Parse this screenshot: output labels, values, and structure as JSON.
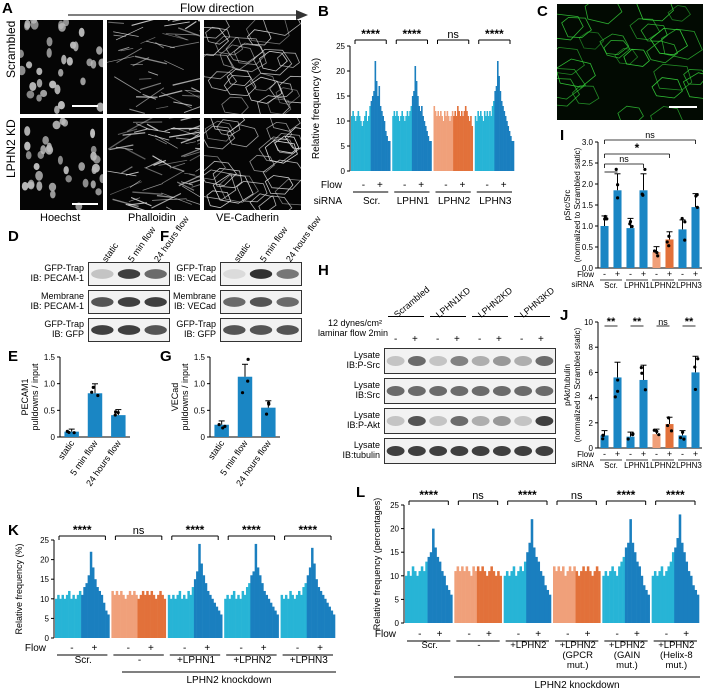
{
  "panels": {
    "A": {
      "letter": "A",
      "flow_direction": "Flow direction",
      "rows": [
        "Scrambled",
        "LPHN2 KD"
      ],
      "cols": [
        "Hoechst",
        "Phalloidin",
        "VE-Cadherin"
      ]
    },
    "B": {
      "letter": "B",
      "ylabel": "Relative frequency (%)",
      "sig": [
        "****",
        "****",
        "ns",
        "****"
      ],
      "flow": "Flow",
      "siRNA": "siRNA",
      "groups": [
        "Scr.",
        "LPHN1",
        "LPHN2",
        "LPHN3"
      ],
      "minus": "-",
      "plus": "+"
    },
    "C": {
      "letter": "C"
    },
    "D": {
      "letter": "D",
      "lanes": [
        "static",
        "5 min flow",
        "24 hours flow"
      ],
      "rows": [
        "GFP-Trap\nIB: PECAM-1",
        "Membrane\nIB: PECAM-1",
        "GFP-Trap\nIB: GFP"
      ]
    },
    "E": {
      "letter": "E",
      "ylabel": "PECAM1\npulldowns / input",
      "cats": [
        "static",
        "5 min flow",
        "24 hours flow"
      ]
    },
    "F": {
      "letter": "F",
      "lanes": [
        "static",
        "5 min flow",
        "24 hours flow"
      ],
      "rows": [
        "GFP-Trap\nIB: VECad",
        "Membrane\nIB: VECad",
        "GFP-Trap\nIB: GFP"
      ]
    },
    "G": {
      "letter": "G",
      "ylabel": "VECad\npulldowns / input",
      "cats": [
        "static",
        "5 min flow",
        "24 hours flow"
      ]
    },
    "H": {
      "letter": "H",
      "groups": [
        "Scrambled",
        "LPHN1KD",
        "LPHN2KD",
        "LPHN3KD"
      ],
      "cond": "12 dynes/cm²\nlaminar flow 2min",
      "rows": [
        "Lysate\nIB:P-Src",
        "Lysate\nIB:Src",
        "Lysate\nIB:P-Akt",
        "Lysate\nIB:tubulin"
      ]
    },
    "I": {
      "letter": "I",
      "ylabel": "pSrc/Src\n(normalized to Scrambled static)",
      "sig": [
        "ns",
        "*",
        "ns",
        "ns"
      ],
      "groups": [
        "Scr.",
        "LPHN1",
        "LPHN2",
        "LPHN3"
      ]
    },
    "J": {
      "letter": "J",
      "ylabel": "pAkt/tubulin\n(normalized to Scrambled static)",
      "sig": [
        "**",
        "**",
        "ns",
        "**"
      ],
      "groups": [
        "Scr.",
        "LPHN1",
        "LPHN2",
        "LPHN3"
      ]
    },
    "K": {
      "letter": "K",
      "ylabel": "Relative frequency (%)",
      "sig": [
        "****",
        "ns",
        "****",
        "****",
        "****"
      ],
      "groups": [
        "Scr.",
        "-",
        "+LPHN1",
        "+LPHN2",
        "+LPHN3"
      ],
      "knockdown": "LPHN2 knockdown"
    },
    "L": {
      "letter": "L",
      "ylabel": "Relative frequency (percentages)",
      "sig": [
        "****",
        "ns",
        "****",
        "ns",
        "****",
        "****"
      ],
      "groups": [
        "Scr.",
        "-",
        "+LPHN2",
        "+LPHN2\n(GPCR\nmut.)",
        "+LPHN2\n(GAIN\nmut.)",
        "+LPHN2\n(Helix-8\nmut.)"
      ],
      "knockdown": "LPHN2 knockdown"
    }
  },
  "chart_data": [
    {
      "type": "bar",
      "id": "E",
      "categories": [
        "static",
        "5 min flow",
        "24 hours flow"
      ],
      "values": [
        0.1,
        0.82,
        0.41
      ],
      "ylim": [
        0,
        1.5
      ],
      "yticks": [
        0,
        0.5,
        1.0,
        1.5
      ],
      "ytick_labels": [
        "0",
        "0.5",
        "1.0",
        "1.5"
      ]
    },
    {
      "type": "bar",
      "id": "G",
      "categories": [
        "static",
        "5 min flow",
        "24 hours flow"
      ],
      "values": [
        0.23,
        1.13,
        0.55
      ],
      "ylim": [
        0,
        1.5
      ],
      "yticks": [
        0,
        0.5,
        1.0,
        1.5
      ],
      "ytick_labels": [
        "0",
        "0.5",
        "1.0",
        "1.5"
      ]
    },
    {
      "type": "bar",
      "id": "I",
      "categories": [
        "Scr.-",
        "Scr.+",
        "LPHN1-",
        "LPHN1+",
        "LPHN2-",
        "LPHN2+",
        "LPHN3-",
        "LPHN3+"
      ],
      "values": [
        1.0,
        1.85,
        0.95,
        1.85,
        0.38,
        0.68,
        0.92,
        1.45
      ],
      "ylim": [
        0,
        3
      ],
      "yticks": [
        0,
        0.5,
        1,
        1.5,
        2,
        2.5,
        3
      ],
      "ytick_labels": [
        "0.0",
        "0.5",
        "1.0",
        "1.5",
        "2.0",
        "2.5",
        "3.0"
      ]
    },
    {
      "type": "bar",
      "id": "J",
      "categories": [
        "Scr.-",
        "Scr.+",
        "LPHN1-",
        "LPHN1+",
        "LPHN2-",
        "LPHN2+",
        "LPHN3-",
        "LPHN3+"
      ],
      "values": [
        1.0,
        5.6,
        0.9,
        5.4,
        1.1,
        1.9,
        1.0,
        6.0
      ],
      "ylim": [
        0,
        10
      ],
      "yticks": [
        0,
        2,
        4,
        6,
        8,
        10
      ],
      "ytick_labels": [
        "0",
        "2",
        "4",
        "6",
        "8",
        "10"
      ]
    },
    {
      "type": "area",
      "id": "B",
      "ylim": [
        0,
        25
      ],
      "yticks": [
        0,
        5,
        10,
        15,
        20,
        25
      ],
      "ytick_labels": [
        "0",
        "5",
        "10",
        "15",
        "20",
        "25"
      ],
      "series": [
        {
          "values": [
            11,
            12,
            11,
            10,
            11,
            12,
            11,
            10,
            9,
            10,
            11,
            12,
            10,
            11,
            13,
            14,
            15,
            16,
            22,
            18,
            15,
            17,
            13,
            12,
            11,
            10,
            8,
            7,
            6,
            6
          ]
        },
        {
          "values": [
            11,
            12,
            11,
            12,
            11,
            10,
            11,
            12,
            11,
            10,
            11,
            12,
            11,
            12,
            13,
            15,
            16,
            21,
            18,
            15,
            13,
            12,
            13,
            11,
            10,
            9,
            8,
            7,
            6,
            6
          ]
        },
        {
          "values": [
            13,
            12,
            11,
            12,
            11,
            12,
            11,
            10,
            12,
            11,
            12,
            11,
            10,
            11,
            12,
            11,
            12,
            11,
            13,
            12,
            11,
            12,
            11,
            12,
            13,
            12,
            11,
            10,
            11,
            9
          ]
        },
        {
          "values": [
            11,
            10,
            12,
            11,
            12,
            11,
            10,
            12,
            11,
            12,
            11,
            12,
            11,
            13,
            14,
            16,
            17,
            22,
            19,
            16,
            14,
            13,
            12,
            11,
            10,
            9,
            8,
            7,
            6,
            6
          ]
        }
      ]
    },
    {
      "type": "area",
      "id": "K",
      "ylim": [
        0,
        25
      ],
      "yticks": [
        0,
        5,
        10,
        15,
        20,
        25
      ],
      "ytick_labels": [
        "0",
        "5",
        "10",
        "15",
        "20",
        "25"
      ],
      "series": [
        {
          "values": [
            10,
            11,
            10,
            11,
            10,
            11,
            12,
            10,
            11,
            10,
            11,
            12,
            11,
            13,
            14,
            16,
            22,
            18,
            15,
            13,
            12,
            11,
            9,
            7,
            6
          ]
        },
        {
          "values": [
            12,
            11,
            12,
            11,
            12,
            11,
            10,
            11,
            12,
            11,
            12,
            11,
            10,
            11,
            12,
            11,
            12,
            11,
            12,
            11,
            10,
            11,
            12,
            11,
            10
          ]
        },
        {
          "values": [
            11,
            10,
            11,
            10,
            11,
            12,
            10,
            11,
            10,
            12,
            11,
            13,
            15,
            17,
            24,
            19,
            16,
            14,
            12,
            11,
            10,
            9,
            8,
            7,
            6
          ]
        },
        {
          "values": [
            10,
            11,
            10,
            11,
            12,
            10,
            11,
            10,
            12,
            11,
            13,
            14,
            16,
            17,
            24,
            18,
            16,
            14,
            12,
            11,
            10,
            9,
            8,
            7,
            6
          ]
        },
        {
          "values": [
            11,
            10,
            11,
            10,
            12,
            11,
            10,
            11,
            12,
            11,
            13,
            14,
            16,
            18,
            23,
            19,
            15,
            13,
            12,
            11,
            10,
            9,
            8,
            7,
            6
          ]
        }
      ]
    },
    {
      "type": "area",
      "id": "L",
      "ylim": [
        0,
        25
      ],
      "yticks": [
        0,
        5,
        10,
        15,
        20,
        25
      ],
      "ytick_labels": [
        "0",
        "5",
        "10",
        "15",
        "20",
        "25"
      ],
      "series": [
        {
          "values": [
            10,
            11,
            10,
            12,
            11,
            10,
            11,
            12,
            11,
            13,
            14,
            15,
            20,
            16,
            14,
            13,
            11,
            10,
            8,
            7,
            6
          ]
        },
        {
          "values": [
            11,
            12,
            11,
            12,
            11,
            12,
            11,
            10,
            12,
            11,
            12,
            11,
            12,
            11,
            10,
            11,
            12,
            11,
            10,
            11,
            10
          ]
        },
        {
          "values": [
            10,
            11,
            10,
            11,
            12,
            10,
            11,
            12,
            11,
            13,
            15,
            17,
            22,
            16,
            14,
            13,
            11,
            10,
            8,
            7,
            6
          ]
        },
        {
          "values": [
            12,
            11,
            12,
            11,
            12,
            10,
            11,
            12,
            11,
            12,
            11,
            10,
            11,
            12,
            11,
            12,
            11,
            10,
            11,
            12,
            11
          ]
        },
        {
          "values": [
            10,
            11,
            10,
            11,
            12,
            11,
            10,
            12,
            13,
            14,
            16,
            17,
            22,
            17,
            15,
            13,
            12,
            10,
            8,
            7,
            6
          ]
        },
        {
          "values": [
            10,
            11,
            10,
            11,
            12,
            10,
            11,
            12,
            13,
            15,
            16,
            18,
            23,
            17,
            15,
            13,
            11,
            10,
            8,
            7,
            6
          ]
        }
      ]
    }
  ],
  "colors": {
    "light_blue": "#27b4d6",
    "dark_blue": "#1a7fbf",
    "light_orange": "#f0a07a",
    "dark_orange": "#e2713a",
    "bar_blue": "#1a86c4"
  }
}
